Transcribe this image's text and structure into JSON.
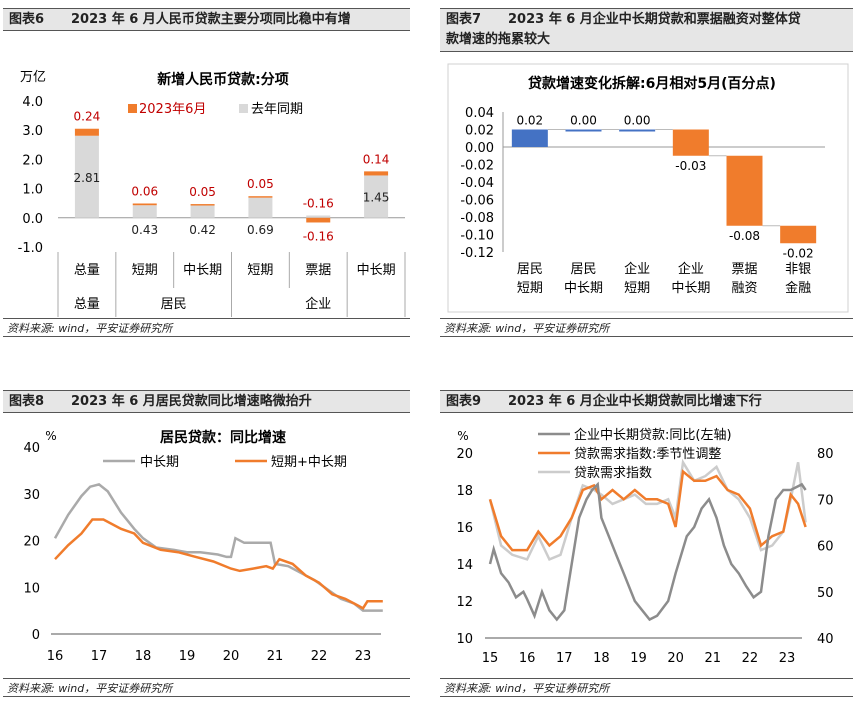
{
  "source_label": "资料来源: wind，平安证券研究所",
  "colors": {
    "orange": "#f07c2c",
    "blue": "#4472c4",
    "gray": "#d9d9d9",
    "darkgray": "#808080",
    "lightgray": "#c8c8c8",
    "red": "#c00000"
  },
  "fig6": {
    "num": "图表6",
    "title": "2023 年 6 月人民币贷款主要分项同比稳中有增",
    "chart_data": {
      "type": "bar",
      "title": "新增人民币贷款:分项",
      "unit": "万亿",
      "categories": [
        "总量",
        "短期",
        "中长期",
        "短期",
        "票据",
        "中长期"
      ],
      "groups": [
        "居民",
        "企业"
      ],
      "yticks": [
        "4.0",
        "3.0",
        "2.0",
        "1.0",
        "0.0",
        "-1.0"
      ],
      "ylim": [
        -1.0,
        4.0
      ],
      "series": [
        {
          "name": "去年同期",
          "values": [
            2.81,
            0.43,
            0.42,
            0.69,
            0.08,
            1.45
          ],
          "labels": [
            "2.81",
            "0.43",
            "0.42",
            "0.69",
            "0.08",
            "1.45"
          ]
        },
        {
          "name": "2023年6月",
          "values": [
            0.24,
            0.06,
            0.05,
            0.05,
            -0.16,
            0.14
          ],
          "labels": [
            "0.24",
            "0.06",
            "0.05",
            "0.05",
            "-0.16",
            "0.14"
          ]
        }
      ],
      "legend": "top-right"
    }
  },
  "fig7": {
    "num": "图表7",
    "title_line1": "2023 年 6 月企业中长期贷款和票据融资对整体贷",
    "title_line2": "款增速的拖累较大",
    "chart_data": {
      "type": "bar",
      "title": "贷款增速变化拆解:6月相对5月(百分点)",
      "categories": [
        [
          "居民",
          "短期"
        ],
        [
          "居民",
          "中长期"
        ],
        [
          "企业",
          "短期"
        ],
        [
          "企业",
          "中长期"
        ],
        [
          "票据",
          "融资"
        ],
        [
          "非银",
          "金融"
        ]
      ],
      "values": [
        0.02,
        0.0,
        0.0,
        -0.03,
        -0.08,
        -0.02
      ],
      "labels": [
        "0.02",
        "0.00",
        "0.00",
        "-0.03",
        "-0.08",
        "-0.02"
      ],
      "yticks": [
        "0.04",
        "0.02",
        "0.00",
        "-0.02",
        "-0.04",
        "-0.06",
        "-0.08",
        "-0.10",
        "-0.12"
      ],
      "ylim": [
        -0.12,
        0.04
      ]
    }
  },
  "fig8": {
    "num": "图表8",
    "title": "2023 年 6 月居民贷款同比增速略微抬升",
    "chart_data": {
      "type": "line",
      "title": "居民贷款：同比增速",
      "unit": "%",
      "yticks": [
        "40",
        "30",
        "20",
        "10",
        "0"
      ],
      "ylim": [
        0,
        40
      ],
      "xticks": [
        "16",
        "17",
        "18",
        "19",
        "20",
        "21",
        "22",
        "23"
      ],
      "series": [
        {
          "name": "中长期",
          "points": [
            [
              16.0,
              20.5
            ],
            [
              16.3,
              25.5
            ],
            [
              16.6,
              29.5
            ],
            [
              16.8,
              31.5
            ],
            [
              17.0,
              32
            ],
            [
              17.2,
              30.5
            ],
            [
              17.5,
              26
            ],
            [
              17.8,
              22.5
            ],
            [
              18.0,
              20.5
            ],
            [
              18.3,
              18.5
            ],
            [
              18.7,
              18
            ],
            [
              19.0,
              17.5
            ],
            [
              19.3,
              17.5
            ],
            [
              19.7,
              17
            ],
            [
              19.9,
              16.5
            ],
            [
              20.0,
              16.5
            ],
            [
              20.1,
              20.5
            ],
            [
              20.3,
              19.5
            ],
            [
              20.6,
              19.5
            ],
            [
              20.9,
              19.5
            ],
            [
              21.0,
              15
            ],
            [
              21.3,
              14.5
            ],
            [
              21.6,
              13
            ],
            [
              21.9,
              11.5
            ],
            [
              22.2,
              9.5
            ],
            [
              22.5,
              7.5
            ],
            [
              22.8,
              6.5
            ],
            [
              23.0,
              5
            ],
            [
              23.2,
              5
            ],
            [
              23.45,
              5
            ]
          ]
        },
        {
          "name": "短期+中长期",
          "points": [
            [
              16.0,
              16
            ],
            [
              16.3,
              19
            ],
            [
              16.6,
              21.5
            ],
            [
              16.85,
              24.5
            ],
            [
              17.1,
              24.5
            ],
            [
              17.5,
              22.5
            ],
            [
              17.8,
              21.5
            ],
            [
              18.0,
              19.5
            ],
            [
              18.4,
              18
            ],
            [
              18.8,
              17.5
            ],
            [
              19.2,
              16.5
            ],
            [
              19.6,
              15.5
            ],
            [
              20.0,
              14
            ],
            [
              20.2,
              13.5
            ],
            [
              20.5,
              14
            ],
            [
              20.8,
              14.5
            ],
            [
              20.95,
              14
            ],
            [
              21.1,
              16
            ],
            [
              21.4,
              15
            ],
            [
              21.7,
              12.5
            ],
            [
              22.0,
              11
            ],
            [
              22.3,
              8.5
            ],
            [
              22.6,
              7.5
            ],
            [
              22.9,
              6
            ],
            [
              23.0,
              5.5
            ],
            [
              23.1,
              7
            ],
            [
              23.45,
              7
            ]
          ]
        }
      ]
    }
  },
  "fig9": {
    "num": "图表9",
    "title": "2023 年 6 月企业中长期贷款同比增速下行",
    "chart_data": {
      "type": "line",
      "unit": "%",
      "yticks_left": [
        "20",
        "18",
        "16",
        "14",
        "12",
        "10"
      ],
      "ylim_left": [
        10,
        20
      ],
      "yticks_right": [
        "80",
        "70",
        "60",
        "50",
        "40"
      ],
      "ylim_right": [
        40,
        80
      ],
      "xticks": [
        "15",
        "16",
        "17",
        "18",
        "19",
        "20",
        "21",
        "22",
        "23"
      ],
      "series": [
        {
          "name": "企业中长期贷款:同比(左轴)",
          "axis": "left",
          "points": [
            [
              15.0,
              14
            ],
            [
              15.1,
              14.8
            ],
            [
              15.3,
              13.5
            ],
            [
              15.5,
              13
            ],
            [
              15.7,
              12.2
            ],
            [
              15.9,
              12.5
            ],
            [
              16.0,
              12.1
            ],
            [
              16.2,
              11.2
            ],
            [
              16.4,
              12.5
            ],
            [
              16.6,
              11.5
            ],
            [
              16.8,
              11
            ],
            [
              17.0,
              11.5
            ],
            [
              17.2,
              14
            ],
            [
              17.4,
              16.5
            ],
            [
              17.6,
              17.5
            ],
            [
              17.75,
              18
            ],
            [
              17.9,
              18.3
            ],
            [
              18.0,
              16.5
            ],
            [
              18.2,
              15.5
            ],
            [
              18.4,
              14.5
            ],
            [
              18.6,
              13.5
            ],
            [
              18.9,
              12
            ],
            [
              19.1,
              11.5
            ],
            [
              19.3,
              11
            ],
            [
              19.5,
              11.2
            ],
            [
              19.8,
              12
            ],
            [
              20.0,
              13.5
            ],
            [
              20.3,
              15.5
            ],
            [
              20.5,
              16
            ],
            [
              20.7,
              17
            ],
            [
              20.9,
              17.5
            ],
            [
              21.1,
              16.5
            ],
            [
              21.3,
              15
            ],
            [
              21.5,
              14
            ],
            [
              21.7,
              13.5
            ],
            [
              21.9,
              12.8
            ],
            [
              22.1,
              12.2
            ],
            [
              22.3,
              12.5
            ],
            [
              22.5,
              15.5
            ],
            [
              22.7,
              17.5
            ],
            [
              22.9,
              18
            ],
            [
              23.1,
              18
            ],
            [
              23.4,
              18.3
            ],
            [
              23.5,
              18
            ]
          ]
        },
        {
          "name": "贷款需求指数:季节性调整",
          "axis": "right",
          "points": [
            [
              15.0,
              70
            ],
            [
              15.3,
              62
            ],
            [
              15.6,
              59
            ],
            [
              16.0,
              59
            ],
            [
              16.3,
              63
            ],
            [
              16.6,
              60
            ],
            [
              16.9,
              62
            ],
            [
              17.2,
              66
            ],
            [
              17.5,
              72
            ],
            [
              17.8,
              73
            ],
            [
              18.0,
              70
            ],
            [
              18.3,
              72
            ],
            [
              18.6,
              70
            ],
            [
              18.9,
              72
            ],
            [
              19.2,
              70
            ],
            [
              19.5,
              70
            ],
            [
              19.8,
              69
            ],
            [
              20.0,
              64
            ],
            [
              20.2,
              76
            ],
            [
              20.5,
              74
            ],
            [
              20.8,
              74
            ],
            [
              21.1,
              75
            ],
            [
              21.4,
              72
            ],
            [
              21.7,
              71
            ],
            [
              22.0,
              68
            ],
            [
              22.3,
              60
            ],
            [
              22.6,
              62
            ],
            [
              22.9,
              63
            ],
            [
              23.1,
              71
            ],
            [
              23.3,
              69
            ],
            [
              23.5,
              64
            ]
          ]
        },
        {
          "name": "贷款需求指数",
          "axis": "right",
          "points": [
            [
              15.0,
              70
            ],
            [
              15.3,
              60
            ],
            [
              15.6,
              58
            ],
            [
              16.0,
              57
            ],
            [
              16.3,
              62
            ],
            [
              16.6,
              57
            ],
            [
              16.9,
              58
            ],
            [
              17.2,
              66
            ],
            [
              17.5,
              73
            ],
            [
              17.8,
              72
            ],
            [
              18.0,
              71
            ],
            [
              18.3,
              69
            ],
            [
              18.6,
              70
            ],
            [
              18.9,
              71
            ],
            [
              19.2,
              69
            ],
            [
              19.5,
              69
            ],
            [
              19.8,
              70
            ],
            [
              20.0,
              66
            ],
            [
              20.2,
              78
            ],
            [
              20.5,
              74
            ],
            [
              20.8,
              75
            ],
            [
              21.1,
              77
            ],
            [
              21.4,
              72
            ],
            [
              21.7,
              70
            ],
            [
              22.0,
              66
            ],
            [
              22.3,
              59
            ],
            [
              22.6,
              60
            ],
            [
              22.9,
              63
            ],
            [
              23.1,
              70
            ],
            [
              23.3,
              78
            ],
            [
              23.5,
              65
            ]
          ]
        }
      ]
    }
  }
}
